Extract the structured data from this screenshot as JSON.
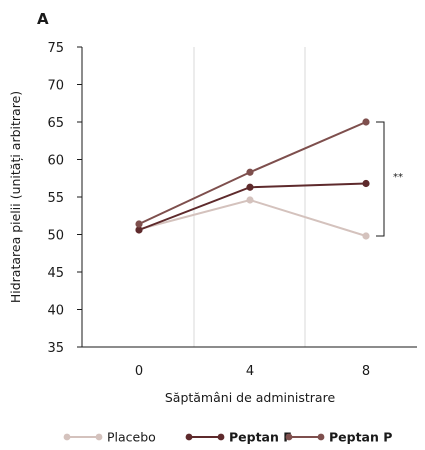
{
  "chart_data": {
    "type": "line",
    "panel_label": "A",
    "xlabel": "Săptămâni de administrare",
    "ylabel": "Hidratarea pielii (unități arbitrare)",
    "categories": [
      "0",
      "4",
      "8"
    ],
    "ylim": [
      35,
      75
    ],
    "yticks": [
      35,
      40,
      45,
      50,
      55,
      60,
      65,
      70,
      75
    ],
    "grid": "vertical",
    "legend_position": "bottom",
    "series": [
      {
        "name": "Placebo",
        "values": [
          50.7,
          54.6,
          49.8
        ],
        "color": "#d4c2bd",
        "bold": false
      },
      {
        "name": "Peptan F",
        "values": [
          50.6,
          56.3,
          56.8
        ],
        "color": "#5e2a2c",
        "bold": true
      },
      {
        "name": "Peptan P",
        "values": [
          51.4,
          58.3,
          65.0
        ],
        "color": "#7e4f4d",
        "bold": true
      }
    ],
    "significance": {
      "label": "**",
      "from_series": "Peptan P",
      "to_series": "Placebo",
      "at": "8"
    }
  }
}
